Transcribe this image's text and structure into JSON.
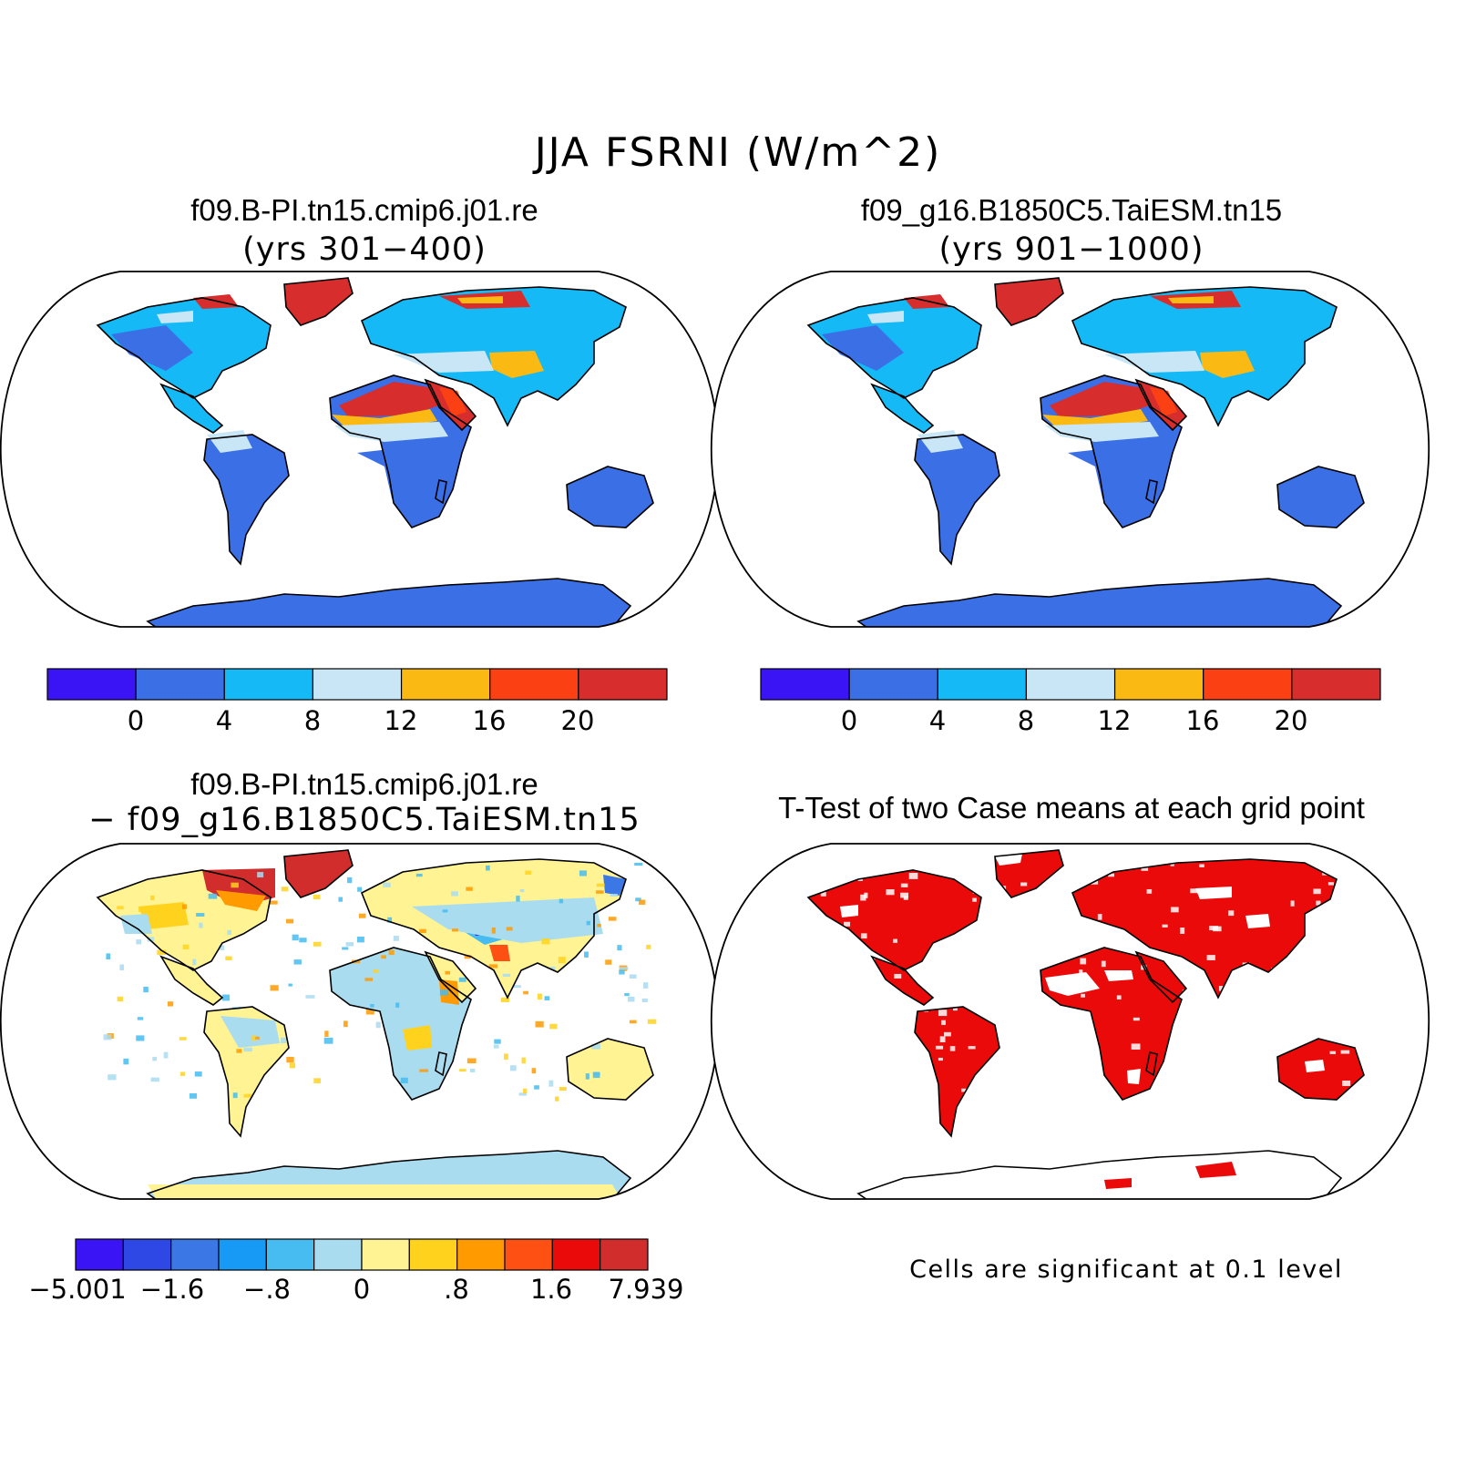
{
  "title": "JJA FSRNI (W/m^2)",
  "colors": {
    "case_scale": [
      "#3b14f5",
      "#3b6fe6",
      "#14b9f5",
      "#c8e6f5",
      "#fbb914",
      "#fb4114",
      "#d72d2d"
    ],
    "diff_scale": [
      "#3b14f5",
      "#2e48e6",
      "#3b78e6",
      "#169af5",
      "#46bcf0",
      "#aadcf0",
      "#fff394",
      "#ffd21e",
      "#ff9a00",
      "#ff5014",
      "#eb0a0a",
      "#d22d2d"
    ],
    "significance": "#eb0a0a",
    "ocean": "#ffffff",
    "outline": "#000000"
  },
  "panels": {
    "top_left": {
      "title": "f09.B-PI.tn15.cmip6.j01.re",
      "subtitle": "(yrs 301−400)",
      "colorbar_ticks": [
        "0",
        "4",
        "8",
        "12",
        "16",
        "20"
      ]
    },
    "top_right": {
      "title": "f09_g16.B1850C5.TaiESM.tn15",
      "subtitle": "(yrs 901−1000)",
      "colorbar_ticks": [
        "0",
        "4",
        "8",
        "12",
        "16",
        "20"
      ]
    },
    "bottom_left": {
      "title": "f09.B-PI.tn15.cmip6.j01.re",
      "subtitle": "− f09_g16.B1850C5.TaiESM.tn15",
      "colorbar_ticks": [
        "−5.001",
        "−1.6",
        "−.8",
        "0",
        ".8",
        "1.6",
        "7.939"
      ]
    },
    "bottom_right": {
      "title": "T-Test of two Case means at each grid point",
      "note": "Cells are significant at 0.1 level"
    }
  }
}
